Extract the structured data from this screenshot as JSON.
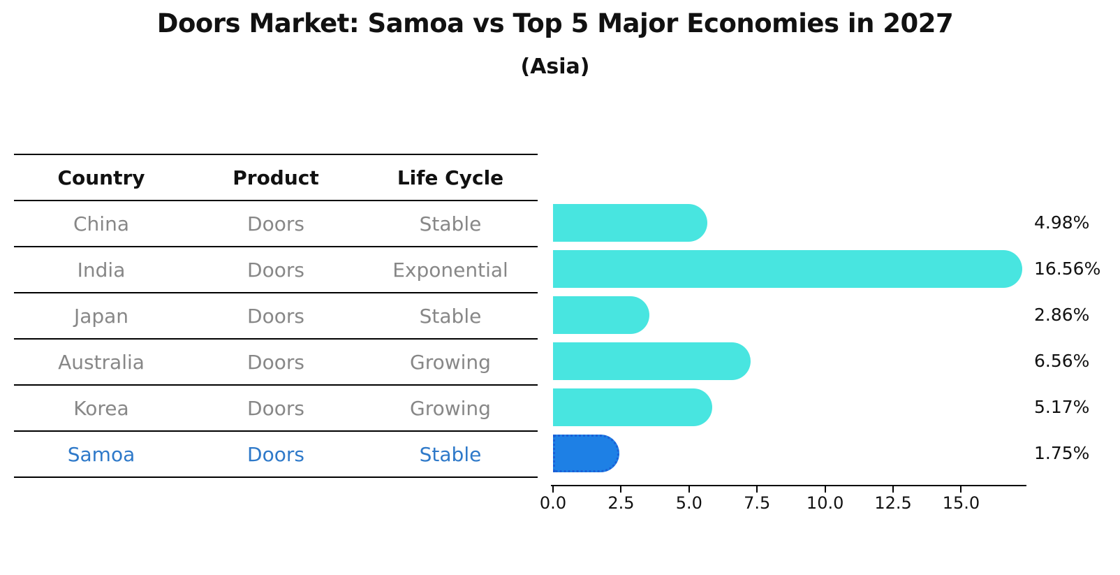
{
  "header": {
    "title": "Doors Market: Samoa vs Top 5 Major Economies in 2027",
    "subtitle": "(Asia)"
  },
  "table": {
    "headers": [
      "Country",
      "Product",
      "Life Cycle"
    ],
    "rows": [
      {
        "country": "China",
        "product": "Doors",
        "life_cycle": "Stable",
        "highlighted": false
      },
      {
        "country": "India",
        "product": "Doors",
        "life_cycle": "Exponential",
        "highlighted": false
      },
      {
        "country": "Japan",
        "product": "Doors",
        "life_cycle": "Stable",
        "highlighted": false
      },
      {
        "country": "Australia",
        "product": "Doors",
        "life_cycle": "Growing",
        "highlighted": false
      },
      {
        "country": "Korea",
        "product": "Doors",
        "life_cycle": "Growing",
        "highlighted": false
      },
      {
        "country": "Samoa",
        "product": "Doors",
        "life_cycle": "Stable",
        "highlighted": true
      }
    ]
  },
  "chart_data": {
    "type": "bar",
    "orientation": "horizontal",
    "title": "Doors Market: Samoa vs Top 5 Major Economies in 2027",
    "subtitle": "(Asia)",
    "categories": [
      "China",
      "India",
      "Japan",
      "Australia",
      "Korea",
      "Samoa"
    ],
    "values": [
      4.98,
      16.56,
      2.86,
      6.56,
      5.17,
      1.75
    ],
    "value_labels": [
      "4.98%",
      "16.56%",
      "2.86%",
      "6.56%",
      "5.17%",
      "1.75%"
    ],
    "xlabel": "",
    "ylabel": "",
    "xlim": [
      0,
      17.4
    ],
    "xticks": [
      0.0,
      2.5,
      5.0,
      7.5,
      10.0,
      12.5,
      15.0
    ],
    "xtick_labels": [
      "0.0",
      "2.5",
      "5.0",
      "7.5",
      "10.0",
      "12.5",
      "15.0"
    ],
    "grid": false,
    "legend": false,
    "colors": {
      "bar": "#48e5e0",
      "highlight_bar": "#1e80e5",
      "highlight_bar_border": "#1a5fd6",
      "highlight_text": "#2e79c9",
      "table_text": "#878787",
      "axis": "#000000",
      "value_text": "#111111"
    },
    "highlight_index": 5
  }
}
